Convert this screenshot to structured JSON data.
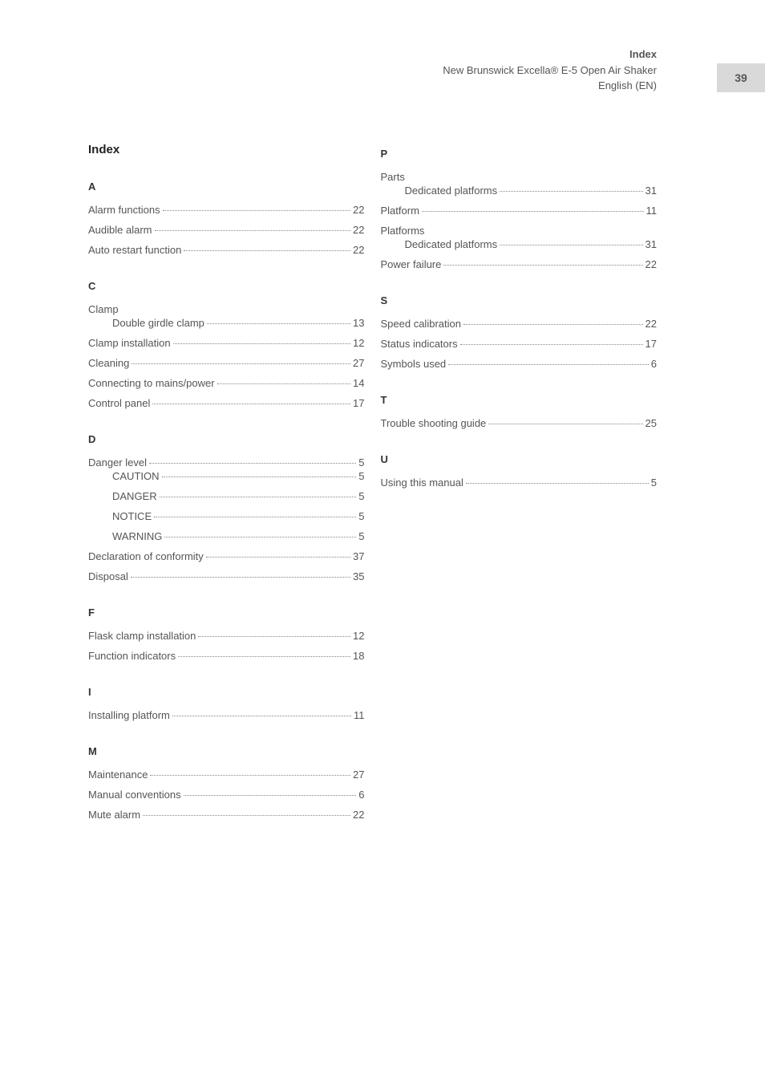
{
  "page_number": "39",
  "header": {
    "title": "Index",
    "subtitle": "New Brunswick Excella® E-5 Open Air Shaker",
    "lang": "English (EN)"
  },
  "index_title": "Index",
  "colors": {
    "background": "#ffffff",
    "text_muted": "#555555",
    "text_heading": "#222222",
    "tab_bg": "#d9d9d9",
    "leader": "#888888"
  },
  "fontsize": {
    "body": 13,
    "heading": 15
  },
  "sections": {
    "left": [
      {
        "letter": "A",
        "entries": [
          {
            "label": "Alarm functions",
            "page": "22"
          },
          {
            "label": "Audible alarm",
            "page": "22"
          },
          {
            "label": "Auto restart function",
            "page": "22"
          }
        ]
      },
      {
        "letter": "C",
        "entries": [
          {
            "label": "Clamp",
            "children": [
              {
                "label": "Double girdle clamp",
                "page": "13"
              }
            ]
          },
          {
            "label": "Clamp installation",
            "page": "12"
          },
          {
            "label": "Cleaning",
            "page": "27"
          },
          {
            "label": "Connecting to mains/power",
            "page": "14"
          },
          {
            "label": "Control panel",
            "page": "17"
          }
        ]
      },
      {
        "letter": "D",
        "entries": [
          {
            "label": "Danger level",
            "page": "5",
            "children_after": [
              {
                "label": "CAUTION",
                "page": "5"
              },
              {
                "label": "DANGER",
                "page": "5"
              },
              {
                "label": "NOTICE",
                "page": "5"
              },
              {
                "label": "WARNING",
                "page": "5"
              }
            ]
          },
          {
            "label": "Declaration of conformity",
            "page": "37"
          },
          {
            "label": "Disposal",
            "page": "35"
          }
        ]
      },
      {
        "letter": "F",
        "entries": [
          {
            "label": "Flask clamp installation",
            "page": "12"
          },
          {
            "label": "Function indicators",
            "page": "18"
          }
        ]
      },
      {
        "letter": "I",
        "entries": [
          {
            "label": "Installing platform",
            "page": "11"
          }
        ]
      },
      {
        "letter": "M",
        "entries": [
          {
            "label": "Maintenance",
            "page": "27"
          },
          {
            "label": "Manual conventions",
            "page": "6"
          },
          {
            "label": "Mute alarm",
            "page": "22"
          }
        ]
      }
    ],
    "right": [
      {
        "letter": "P",
        "entries": [
          {
            "label": "Parts",
            "children": [
              {
                "label": "Dedicated platforms",
                "page": "31"
              }
            ]
          },
          {
            "label": "Platform",
            "page": "11"
          },
          {
            "label": "Platforms",
            "children": [
              {
                "label": "Dedicated platforms",
                "page": "31"
              }
            ]
          },
          {
            "label": "Power failure",
            "page": "22"
          }
        ]
      },
      {
        "letter": "S",
        "entries": [
          {
            "label": "Speed calibration",
            "page": "22"
          },
          {
            "label": "Status indicators",
            "page": "17"
          },
          {
            "label": "Symbols used",
            "page": "6"
          }
        ]
      },
      {
        "letter": "T",
        "entries": [
          {
            "label": "Trouble shooting guide",
            "page": "25"
          }
        ]
      },
      {
        "letter": "U",
        "entries": [
          {
            "label": "Using this manual",
            "page": "5"
          }
        ]
      }
    ]
  }
}
